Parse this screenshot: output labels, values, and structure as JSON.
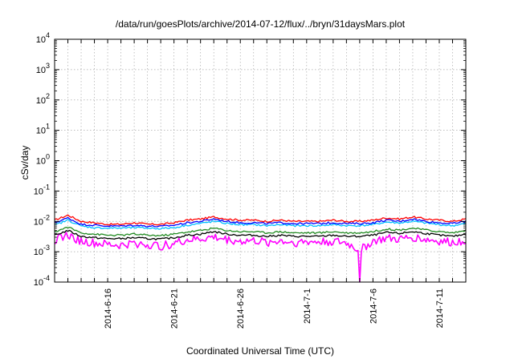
{
  "chart_data": {
    "type": "line",
    "title": "/data/run/goesPlots/archive/2014-07-12/flux/../bryn/31daysMars.plot",
    "xlabel": "Coordinated Universal Time (UTC)",
    "ylabel": "cSv/day",
    "yscale": "log",
    "ylim": [
      0.0001,
      10000
    ],
    "xlim": [
      "2014-06-12",
      "2014-07-13"
    ],
    "grid": true,
    "legend": "none",
    "y_ticks": [
      {
        "base": "10",
        "exp": "-4"
      },
      {
        "base": "10",
        "exp": "-3"
      },
      {
        "base": "10",
        "exp": "-2"
      },
      {
        "base": "10",
        "exp": "-1"
      },
      {
        "base": "10",
        "exp": "0"
      },
      {
        "base": "10",
        "exp": "1"
      },
      {
        "base": "10",
        "exp": "2"
      },
      {
        "base": "10",
        "exp": "3"
      },
      {
        "base": "10",
        "exp": "4"
      }
    ],
    "x_ticks": [
      {
        "date": "2014-06-16",
        "label": "2014-6-16"
      },
      {
        "date": "2014-06-21",
        "label": "2014-6-21"
      },
      {
        "date": "2014-06-26",
        "label": "2014-6-26"
      },
      {
        "date": "2014-07-01",
        "label": "2014-7-1"
      },
      {
        "date": "2014-07-06",
        "label": "2014-7-6"
      },
      {
        "date": "2014-07-11",
        "label": "2014-7-11"
      }
    ],
    "x_grid_dates": [
      "2014-06-13",
      "2014-06-14",
      "2014-06-15",
      "2014-06-16",
      "2014-06-17",
      "2014-06-18",
      "2014-06-19",
      "2014-06-20",
      "2014-06-21",
      "2014-06-22",
      "2014-06-23",
      "2014-06-24",
      "2014-06-25",
      "2014-06-26",
      "2014-06-27",
      "2014-06-28",
      "2014-06-29",
      "2014-06-30",
      "2014-07-01",
      "2014-07-02",
      "2014-07-03",
      "2014-07-04",
      "2014-07-05",
      "2014-07-06",
      "2014-07-07",
      "2014-07-08",
      "2014-07-09",
      "2014-07-10",
      "2014-07-11",
      "2014-07-12"
    ],
    "series": [
      {
        "color": "#ff0000",
        "x": [
          "2014-06-12",
          "2014-06-13",
          "2014-06-14",
          "2014-06-15",
          "2014-06-16",
          "2014-06-17",
          "2014-06-18",
          "2014-06-19",
          "2014-06-20",
          "2014-06-21",
          "2014-06-22",
          "2014-06-23",
          "2014-06-24",
          "2014-06-25",
          "2014-06-26",
          "2014-06-27",
          "2014-06-28",
          "2014-06-29",
          "2014-06-30",
          "2014-07-01",
          "2014-07-02",
          "2014-07-03",
          "2014-07-04",
          "2014-07-05",
          "2014-07-06",
          "2014-07-07",
          "2014-07-08",
          "2014-07-09",
          "2014-07-10",
          "2014-07-11",
          "2014-07-12",
          "2014-07-13"
        ],
        "y": [
          0.011,
          0.016,
          0.01,
          0.009,
          0.008,
          0.008,
          0.009,
          0.008,
          0.008,
          0.009,
          0.011,
          0.012,
          0.014,
          0.012,
          0.011,
          0.011,
          0.01,
          0.011,
          0.01,
          0.01,
          0.01,
          0.011,
          0.01,
          0.01,
          0.011,
          0.013,
          0.012,
          0.014,
          0.012,
          0.011,
          0.01,
          0.012
        ]
      },
      {
        "color": "#0000ff",
        "x": [
          "2014-06-12",
          "2014-06-13",
          "2014-06-14",
          "2014-06-15",
          "2014-06-16",
          "2014-06-17",
          "2014-06-18",
          "2014-06-19",
          "2014-06-20",
          "2014-06-21",
          "2014-06-22",
          "2014-06-23",
          "2014-06-24",
          "2014-06-25",
          "2014-06-26",
          "2014-06-27",
          "2014-06-28",
          "2014-06-29",
          "2014-06-30",
          "2014-07-01",
          "2014-07-02",
          "2014-07-03",
          "2014-07-04",
          "2014-07-05",
          "2014-07-06",
          "2014-07-07",
          "2014-07-08",
          "2014-07-09",
          "2014-07-10",
          "2014-07-11",
          "2014-07-12",
          "2014-07-13"
        ],
        "y": [
          0.009,
          0.013,
          0.008,
          0.0075,
          0.007,
          0.007,
          0.0075,
          0.007,
          0.0068,
          0.0075,
          0.009,
          0.01,
          0.012,
          0.01,
          0.009,
          0.009,
          0.0085,
          0.009,
          0.0085,
          0.0085,
          0.0085,
          0.009,
          0.0085,
          0.0085,
          0.009,
          0.011,
          0.01,
          0.012,
          0.01,
          0.009,
          0.0085,
          0.01
        ]
      },
      {
        "color": "#00bfff",
        "x": [
          "2014-06-12",
          "2014-06-13",
          "2014-06-14",
          "2014-06-15",
          "2014-06-16",
          "2014-06-17",
          "2014-06-18",
          "2014-06-19",
          "2014-06-20",
          "2014-06-21",
          "2014-06-22",
          "2014-06-23",
          "2014-06-24",
          "2014-06-25",
          "2014-06-26",
          "2014-06-27",
          "2014-06-28",
          "2014-06-29",
          "2014-06-30",
          "2014-07-01",
          "2014-07-02",
          "2014-07-03",
          "2014-07-04",
          "2014-07-05",
          "2014-07-06",
          "2014-07-07",
          "2014-07-08",
          "2014-07-09",
          "2014-07-10",
          "2014-07-11",
          "2014-07-12",
          "2014-07-13"
        ],
        "y": [
          0.0075,
          0.011,
          0.007,
          0.0062,
          0.006,
          0.006,
          0.0062,
          0.006,
          0.0058,
          0.0062,
          0.0075,
          0.0085,
          0.01,
          0.0085,
          0.0078,
          0.0078,
          0.0072,
          0.0078,
          0.0072,
          0.0072,
          0.0072,
          0.0078,
          0.0072,
          0.0072,
          0.0078,
          0.0095,
          0.0088,
          0.01,
          0.0088,
          0.0078,
          0.0072,
          0.0085
        ]
      },
      {
        "color": "#228b22",
        "x": [
          "2014-06-12",
          "2014-06-13",
          "2014-06-14",
          "2014-06-15",
          "2014-06-16",
          "2014-06-17",
          "2014-06-18",
          "2014-06-19",
          "2014-06-20",
          "2014-06-21",
          "2014-06-22",
          "2014-06-23",
          "2014-06-24",
          "2014-06-25",
          "2014-06-26",
          "2014-06-27",
          "2014-06-28",
          "2014-06-29",
          "2014-06-30",
          "2014-07-01",
          "2014-07-02",
          "2014-07-03",
          "2014-07-04",
          "2014-07-05",
          "2014-07-06",
          "2014-07-07",
          "2014-07-08",
          "2014-07-09",
          "2014-07-10",
          "2014-07-11",
          "2014-07-12",
          "2014-07-13"
        ],
        "y": [
          0.0045,
          0.0065,
          0.0042,
          0.0038,
          0.0035,
          0.0035,
          0.0038,
          0.0035,
          0.0034,
          0.0038,
          0.0045,
          0.005,
          0.006,
          0.005,
          0.0046,
          0.0046,
          0.0042,
          0.0046,
          0.0042,
          0.0042,
          0.0042,
          0.0046,
          0.0042,
          0.0042,
          0.0046,
          0.0056,
          0.0052,
          0.006,
          0.0052,
          0.0046,
          0.0042,
          0.005
        ]
      },
      {
        "color": "#000000",
        "x": [
          "2014-06-12",
          "2014-06-13",
          "2014-06-14",
          "2014-06-15",
          "2014-06-16",
          "2014-06-17",
          "2014-06-18",
          "2014-06-19",
          "2014-06-20",
          "2014-06-21",
          "2014-06-22",
          "2014-06-23",
          "2014-06-24",
          "2014-06-25",
          "2014-06-26",
          "2014-06-27",
          "2014-06-28",
          "2014-06-29",
          "2014-06-30",
          "2014-07-01",
          "2014-07-02",
          "2014-07-03",
          "2014-07-04",
          "2014-07-05",
          "2014-07-06",
          "2014-07-07",
          "2014-07-08",
          "2014-07-09",
          "2014-07-10",
          "2014-07-11",
          "2014-07-12",
          "2014-07-13"
        ],
        "y": [
          0.0035,
          0.005,
          0.0032,
          0.0029,
          0.0027,
          0.0027,
          0.0029,
          0.0027,
          0.0026,
          0.0029,
          0.0035,
          0.0038,
          0.0046,
          0.0038,
          0.0035,
          0.0035,
          0.0032,
          0.0035,
          0.0032,
          0.0032,
          0.0032,
          0.0035,
          0.0032,
          0.0032,
          0.0035,
          0.0043,
          0.004,
          0.0046,
          0.004,
          0.0035,
          0.0032,
          0.0038
        ]
      },
      {
        "color": "#ff00ff",
        "x": [
          "2014-06-12",
          "2014-06-13",
          "2014-06-14",
          "2014-06-15",
          "2014-06-16",
          "2014-06-17",
          "2014-06-18",
          "2014-06-19",
          "2014-06-20",
          "2014-06-21",
          "2014-06-22",
          "2014-06-23",
          "2014-06-24",
          "2014-06-25",
          "2014-06-26",
          "2014-06-27",
          "2014-06-28",
          "2014-06-29",
          "2014-06-30",
          "2014-07-01",
          "2014-07-02",
          "2014-07-03",
          "2014-07-04",
          "2014-07-05",
          "2014-07-06",
          "2014-07-07",
          "2014-07-08",
          "2014-07-09",
          "2014-07-10",
          "2014-07-11",
          "2014-07-12",
          "2014-07-13"
        ],
        "y": [
          0.0025,
          0.0035,
          0.0022,
          0.0019,
          0.0017,
          0.0016,
          0.0019,
          0.0017,
          0.0015,
          0.0019,
          0.0024,
          0.0026,
          0.003,
          0.0025,
          0.0022,
          0.0023,
          0.002,
          0.0023,
          0.002,
          0.0021,
          0.0021,
          0.0022,
          0.0019,
          0.0011,
          0.0022,
          0.0027,
          0.0025,
          0.003,
          0.0025,
          0.0022,
          0.002,
          0.0024
        ]
      }
    ]
  }
}
